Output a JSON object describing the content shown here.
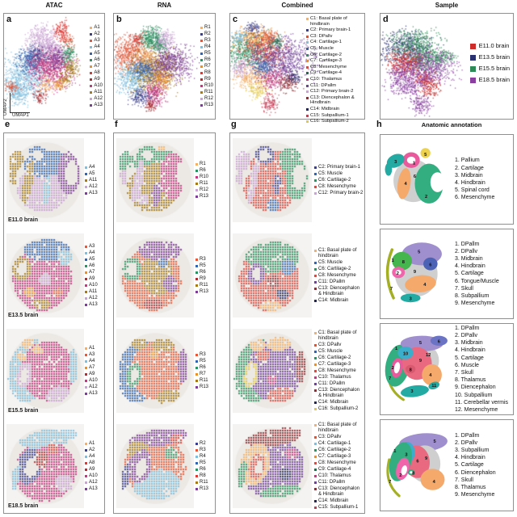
{
  "headers": {
    "col1": "ATAC",
    "col2": "RNA",
    "col3": "Combined",
    "col4": "Sample"
  },
  "panel_letters": {
    "a": "a",
    "b": "b",
    "c": "c",
    "d": "d",
    "e": "e",
    "f": "f",
    "g": "g",
    "h": "h"
  },
  "umap_axes": {
    "x": "UMAP1",
    "y": "UMAP2"
  },
  "anatomic_annotation_title": "Anatomic annotation",
  "palettes": {
    "atac_rna": {
      "1": "#F2B06A",
      "2": "#3A3E8C",
      "3": "#E4593B",
      "4": "#82BEDC",
      "5": "#3564AE",
      "6": "#2E9161",
      "7": "#E8902F",
      "8": "#D93B36",
      "9": "#A93034",
      "10": "#C03A80",
      "11": "#A57A1C",
      "12": "#C9A3D2",
      "13": "#7C3D95"
    },
    "combined": {
      "1": "#F2B06A",
      "2": "#3A3E8C",
      "3": "#D95535",
      "4": "#82BEDC",
      "5": "#3564AE",
      "6": "#2E9161",
      "7": "#E8902F",
      "8": "#DA4A40",
      "9": "#1E6E4C",
      "10": "#C03A80",
      "11": "#6F4098",
      "12": "#C9A3D2",
      "13": "#8E2F35",
      "14": "#23255F",
      "15": "#C43B52",
      "16": "#E2C84A"
    },
    "sample": [
      "#CE2B2B",
      "#2A3170",
      "#2E8B57",
      "#8A3FA0"
    ]
  },
  "combined_names": {
    "C1": "Basal plate of hindbrain",
    "C2": "Primary brain-1",
    "C3": "DPallv",
    "C4": "Cartilage-1",
    "C5": "Muscle",
    "C6": "Cartilage-2",
    "C7": "Cartilage-3",
    "C8": "Mesenchyme",
    "C9": "Cartilage-4",
    "C10": "Thalamus",
    "C11": "DPallm",
    "C12": "Primary brain-2",
    "C13": "Diencephalon & Hindbrain",
    "C14": "Midbrain",
    "C15": "Subpallium-1",
    "C16": "Subpallium-2"
  },
  "sample_keys": [
    "S1",
    "S2",
    "S3",
    "S4"
  ],
  "sample_labels": [
    "E11.0 brain",
    "E13.5 brain",
    "E15.5 brain",
    "E18.5 brain"
  ],
  "panel_a_legend": [
    "A1",
    "A2",
    "A3",
    "A4",
    "A5",
    "A6",
    "A7",
    "A8",
    "A9",
    "A10",
    "A11",
    "A12",
    "A13"
  ],
  "panel_b_legend": [
    "R1",
    "R2",
    "R3",
    "R4",
    "R5",
    "R6",
    "R7",
    "R8",
    "R9",
    "R10",
    "R11",
    "R12",
    "R13"
  ],
  "panel_c_legend": [
    "C1",
    "C2",
    "C3",
    "C4",
    "C5",
    "C6",
    "C7",
    "C8",
    "C9",
    "C10",
    "C11",
    "C12",
    "C13",
    "C14",
    "C15",
    "C16"
  ],
  "rows": [
    {
      "stage": "E11.0 brain",
      "e_legend": [
        "A4",
        "A5",
        "A11",
        "A12",
        "A13"
      ],
      "f_legend": [
        "R1",
        "R6",
        "R10",
        "R11",
        "R12",
        "R13"
      ],
      "g_legend": [
        "C2",
        "C5",
        "C6",
        "C8",
        "C12"
      ],
      "anatomy": [
        "1. Pallium",
        "2. Cartilage",
        "3. Midbrain",
        "4. Hindbrain",
        "5. Spinal cord",
        "6. Mesenchyme"
      ]
    },
    {
      "stage": "E13.5 brain",
      "e_legend": [
        "A3",
        "A4",
        "A5",
        "A6",
        "A7",
        "A9",
        "A10",
        "A11",
        "A12",
        "A13"
      ],
      "f_legend": [
        "R3",
        "R5",
        "R6",
        "R9",
        "R11",
        "R13"
      ],
      "g_legend": [
        "C1",
        "C5",
        "C6",
        "C8",
        "C11",
        "C13",
        "C14"
      ],
      "anatomy": [
        "1. DPallm",
        "2. DPallv",
        "3. Midbrain",
        "4. Hindbrain",
        "5. Cartilage",
        "6. Tongue/Muscle",
        "7. Skull",
        "8. Subpallium",
        "9. Mesenchyme"
      ]
    },
    {
      "stage": "E15.5 brain",
      "e_legend": [
        "A1",
        "A3",
        "A4",
        "A7",
        "A9",
        "A10",
        "A12",
        "A13"
      ],
      "f_legend": [
        "R3",
        "R5",
        "R6",
        "R7",
        "R11",
        "R13"
      ],
      "g_legend": [
        "C1",
        "C3",
        "C5",
        "C6",
        "C7",
        "C8",
        "C10",
        "C11",
        "C13",
        "C14",
        "C16"
      ],
      "anatomy": [
        "1. DPallm",
        "2. DPallv",
        "3. Midbrain",
        "4. Hindbrain",
        "5. Cartilage",
        "6. Muscle",
        "7. Skull",
        "8. Thalamus",
        "9. Diencephalon",
        "10. Subpallium",
        "11. Cerebellar vermis",
        "12. Mesenchyme"
      ]
    },
    {
      "stage": "E18.5 brain",
      "e_legend": [
        "A1",
        "A2",
        "A4",
        "A8",
        "A9",
        "A10",
        "A12",
        "A13"
      ],
      "f_legend": [
        "R2",
        "R3",
        "R4",
        "R5",
        "R6",
        "R8",
        "R11",
        "R13"
      ],
      "g_legend": [
        "C1",
        "C3",
        "C4",
        "C6",
        "C7",
        "C8",
        "C9",
        "C10",
        "C11",
        "C13",
        "C14",
        "C15"
      ],
      "anatomy": [
        "1. DPallm",
        "2. DPallv",
        "3. Subpallium",
        "4. Hindbrain",
        "5. Cartilage",
        "6. Diencephalon",
        "7. Skull",
        "8. Thalamus",
        "9. Mesenchyme"
      ]
    }
  ]
}
